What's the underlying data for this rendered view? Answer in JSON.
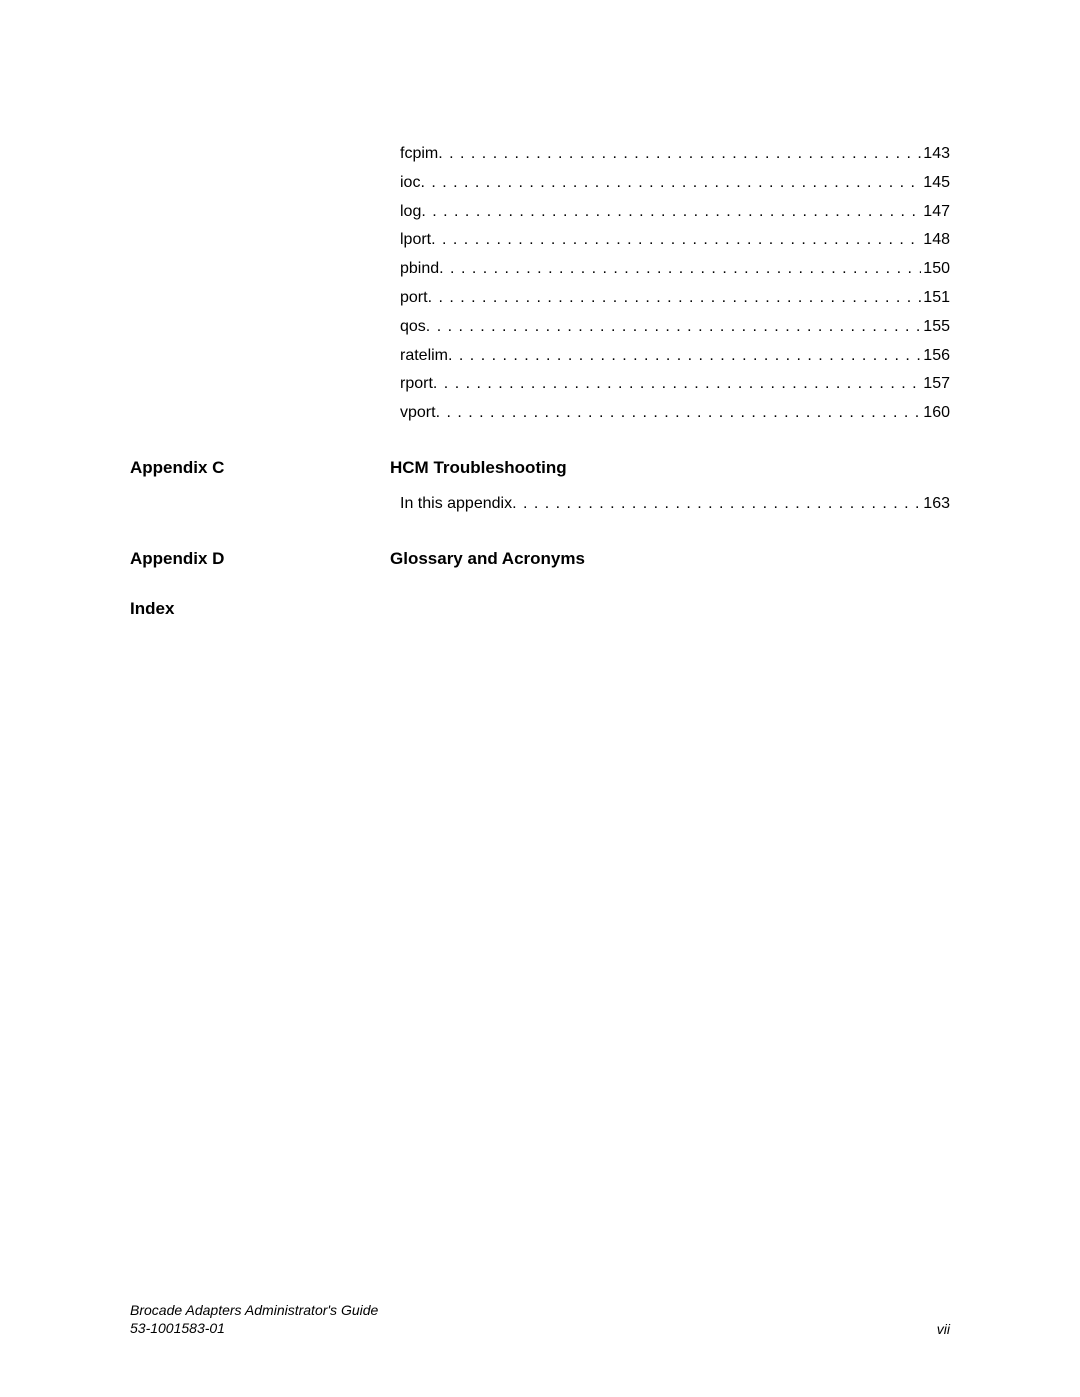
{
  "toc": {
    "items": [
      {
        "label": "fcpim",
        "page": "143"
      },
      {
        "label": "ioc",
        "page": "145"
      },
      {
        "label": "log",
        "page": "147"
      },
      {
        "label": "lport",
        "page": "148"
      },
      {
        "label": "pbind",
        "page": "150"
      },
      {
        "label": "port",
        "page": "151"
      },
      {
        "label": "qos",
        "page": "155"
      },
      {
        "label": "ratelim",
        "page": "156"
      },
      {
        "label": "rport",
        "page": "157"
      },
      {
        "label": "vport",
        "page": "160"
      }
    ]
  },
  "appendixC": {
    "label": "Appendix C",
    "title": "HCM Troubleshooting",
    "sub": {
      "label": "In this appendix",
      "page": "163"
    }
  },
  "appendixD": {
    "label": "Appendix D",
    "title": "Glossary and Acronyms"
  },
  "index": {
    "label": "Index"
  },
  "footer": {
    "title": "Brocade Adapters Administrator's Guide",
    "docnum": "53-1001583-01",
    "pagenum": "vii"
  }
}
